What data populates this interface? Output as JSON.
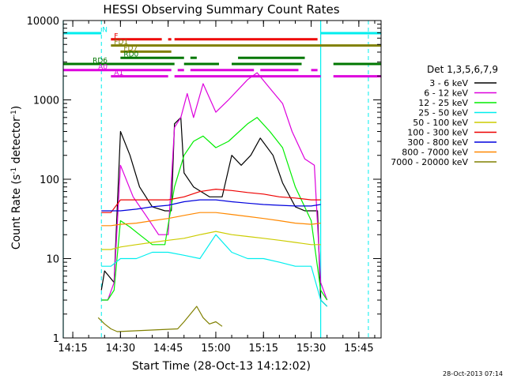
{
  "chart_data": {
    "type": "line",
    "title": "HESSI Observing Summary Count Rates",
    "xlabel": "Start Time (28-Oct-13 14:12:02)",
    "ylabel": "Count Rate (s⁻¹ detector⁻¹)",
    "ylabel_main": "Count Rate (s",
    "ylabel_mid": " detector",
    "ylabel_end": ")",
    "ylabel_sup": "-1",
    "y_scale": "log",
    "ylim": [
      1,
      10000
    ],
    "xlim": [
      "14:12",
      "15:52"
    ],
    "x_ticks": [
      "14:15",
      "14:30",
      "14:45",
      "15:00",
      "15:15",
      "15:30",
      "15:45"
    ],
    "y_ticks": [
      "1",
      "10",
      "100",
      "1000",
      "10000"
    ],
    "footer_timestamp": "28-Oct-2013 07:14",
    "legend": {
      "title": "Det 1,3,5,6,7,9",
      "placement": "right"
    },
    "series": [
      {
        "name": "3 - 6 keV",
        "color": "#000000",
        "points": [
          [
            "14:24",
            4
          ],
          [
            "14:25",
            7
          ],
          [
            "14:28",
            5
          ],
          [
            "14:30",
            400
          ],
          [
            "14:33",
            200
          ],
          [
            "14:36",
            80
          ],
          [
            "14:40",
            45
          ],
          [
            "14:44",
            40
          ],
          [
            "14:46",
            40
          ],
          [
            "14:47",
            500
          ],
          [
            "14:49",
            600
          ],
          [
            "14:50",
            120
          ],
          [
            "14:53",
            80
          ],
          [
            "14:58",
            60
          ],
          [
            "15:02",
            60
          ],
          [
            "15:05",
            200
          ],
          [
            "15:08",
            150
          ],
          [
            "15:11",
            200
          ],
          [
            "15:14",
            330
          ],
          [
            "15:18",
            200
          ],
          [
            "15:21",
            90
          ],
          [
            "15:25",
            45
          ],
          [
            "15:28",
            40
          ],
          [
            "15:32",
            40
          ],
          [
            "15:33",
            3
          ],
          [
            "15:35",
            2.5
          ]
        ]
      },
      {
        "name": "6 - 12 keV",
        "color": "#dd00dd",
        "points": [
          [
            "14:24",
            3
          ],
          [
            "14:26",
            3
          ],
          [
            "14:28",
            5
          ],
          [
            "14:30",
            150
          ],
          [
            "14:34",
            60
          ],
          [
            "14:38",
            35
          ],
          [
            "14:42",
            20
          ],
          [
            "14:45",
            20
          ],
          [
            "14:47",
            450
          ],
          [
            "14:49",
            600
          ],
          [
            "14:51",
            1200
          ],
          [
            "14:53",
            600
          ],
          [
            "14:56",
            1600
          ],
          [
            "15:00",
            700
          ],
          [
            "15:04",
            1000
          ],
          [
            "15:10",
            1800
          ],
          [
            "15:13",
            2200
          ],
          [
            "15:17",
            1400
          ],
          [
            "15:21",
            900
          ],
          [
            "15:24",
            400
          ],
          [
            "15:28",
            180
          ],
          [
            "15:31",
            150
          ],
          [
            "15:33",
            5
          ],
          [
            "15:35",
            3
          ]
        ]
      },
      {
        "name": "12 - 25 keV",
        "color": "#00ee00",
        "points": [
          [
            "14:24",
            3
          ],
          [
            "14:26",
            3
          ],
          [
            "14:28",
            4
          ],
          [
            "14:30",
            30
          ],
          [
            "14:33",
            25
          ],
          [
            "14:36",
            20
          ],
          [
            "14:40",
            15
          ],
          [
            "14:44",
            15
          ],
          [
            "14:47",
            80
          ],
          [
            "14:50",
            200
          ],
          [
            "14:53",
            300
          ],
          [
            "14:56",
            350
          ],
          [
            "15:00",
            250
          ],
          [
            "15:04",
            300
          ],
          [
            "15:10",
            500
          ],
          [
            "15:13",
            600
          ],
          [
            "15:17",
            400
          ],
          [
            "15:21",
            250
          ],
          [
            "15:25",
            80
          ],
          [
            "15:30",
            30
          ],
          [
            "15:33",
            4
          ],
          [
            "15:35",
            3
          ]
        ]
      },
      {
        "name": "25 - 50 keV",
        "color": "#00eeee",
        "points": [
          [
            "14:24",
            8
          ],
          [
            "14:27",
            8
          ],
          [
            "14:30",
            10
          ],
          [
            "14:35",
            10
          ],
          [
            "14:40",
            12
          ],
          [
            "14:45",
            12
          ],
          [
            "14:50",
            11
          ],
          [
            "14:55",
            10
          ],
          [
            "15:00",
            20
          ],
          [
            "15:05",
            12
          ],
          [
            "15:10",
            10
          ],
          [
            "15:15",
            10
          ],
          [
            "15:20",
            9
          ],
          [
            "15:25",
            8
          ],
          [
            "15:30",
            8
          ],
          [
            "15:33",
            3
          ],
          [
            "15:35",
            2.5
          ]
        ]
      },
      {
        "name": "50 - 100 keV",
        "color": "#cccc00",
        "points": [
          [
            "14:24",
            13
          ],
          [
            "14:27",
            13
          ],
          [
            "14:30",
            14
          ],
          [
            "14:35",
            15
          ],
          [
            "14:40",
            16
          ],
          [
            "14:45",
            17
          ],
          [
            "14:50",
            18
          ],
          [
            "14:55",
            20
          ],
          [
            "15:00",
            22
          ],
          [
            "15:05",
            20
          ],
          [
            "15:10",
            19
          ],
          [
            "15:15",
            18
          ],
          [
            "15:20",
            17
          ],
          [
            "15:25",
            16
          ],
          [
            "15:30",
            15
          ],
          [
            "15:33",
            15
          ]
        ]
      },
      {
        "name": "100 - 300 keV",
        "color": "#ee0000",
        "points": [
          [
            "14:24",
            38
          ],
          [
            "14:27",
            38
          ],
          [
            "14:30",
            55
          ],
          [
            "14:35",
            55
          ],
          [
            "14:40",
            55
          ],
          [
            "14:45",
            55
          ],
          [
            "14:50",
            60
          ],
          [
            "14:55",
            70
          ],
          [
            "15:00",
            75
          ],
          [
            "15:05",
            72
          ],
          [
            "15:10",
            68
          ],
          [
            "15:15",
            65
          ],
          [
            "15:20",
            60
          ],
          [
            "15:25",
            58
          ],
          [
            "15:30",
            55
          ],
          [
            "15:33",
            55
          ]
        ]
      },
      {
        "name": "300 - 800 keV",
        "color": "#0000dd",
        "points": [
          [
            "14:24",
            40
          ],
          [
            "14:27",
            40
          ],
          [
            "14:30",
            40
          ],
          [
            "14:35",
            42
          ],
          [
            "14:40",
            45
          ],
          [
            "14:45",
            47
          ],
          [
            "14:50",
            52
          ],
          [
            "14:55",
            55
          ],
          [
            "15:00",
            55
          ],
          [
            "15:05",
            52
          ],
          [
            "15:10",
            50
          ],
          [
            "15:15",
            48
          ],
          [
            "15:20",
            47
          ],
          [
            "15:25",
            46
          ],
          [
            "15:30",
            46
          ],
          [
            "15:33",
            48
          ]
        ]
      },
      {
        "name": "800 - 7000 keV",
        "color": "#ff8800",
        "points": [
          [
            "14:24",
            26
          ],
          [
            "14:27",
            26
          ],
          [
            "14:30",
            27
          ],
          [
            "14:35",
            28
          ],
          [
            "14:40",
            30
          ],
          [
            "14:45",
            32
          ],
          [
            "14:50",
            35
          ],
          [
            "14:55",
            38
          ],
          [
            "15:00",
            38
          ],
          [
            "15:05",
            36
          ],
          [
            "15:10",
            34
          ],
          [
            "15:15",
            32
          ],
          [
            "15:20",
            30
          ],
          [
            "15:25",
            28
          ],
          [
            "15:30",
            27
          ],
          [
            "15:33",
            28
          ]
        ]
      },
      {
        "name": "7000 - 20000 keV",
        "color": "#808000",
        "points": [
          [
            "14:23",
            1.8
          ],
          [
            "14:25",
            1.5
          ],
          [
            "14:27",
            1.3
          ],
          [
            "14:29",
            1.2
          ],
          [
            "14:48",
            1.3
          ],
          [
            "14:50",
            1.6
          ],
          [
            "14:52",
            2.0
          ],
          [
            "14:54",
            2.5
          ],
          [
            "14:56",
            1.8
          ],
          [
            "14:58",
            1.5
          ],
          [
            "15:00",
            1.6
          ],
          [
            "15:02",
            1.4
          ]
        ]
      }
    ],
    "state_bars": [
      {
        "label": "N",
        "color": "#00eeee",
        "segments": [
          [
            "14:12",
            "14:24"
          ],
          [
            "15:33",
            "15:52"
          ]
        ]
      },
      {
        "label": "F",
        "color": "#ee0000",
        "segments": [
          [
            "14:27",
            "14:43"
          ],
          [
            "14:45",
            "14:46"
          ],
          [
            "14:47",
            "15:32"
          ]
        ]
      },
      {
        "label": "FD1",
        "color": "#808000",
        "segments": [
          [
            "14:27",
            "15:52"
          ]
        ]
      },
      {
        "label": "FD7",
        "color": "#808000",
        "segments": [
          [
            "14:30",
            "14:46"
          ]
        ]
      },
      {
        "label": "RD0",
        "color": "#007700",
        "segments": [
          [
            "14:30",
            "14:50"
          ],
          [
            "14:52",
            "14:54"
          ],
          [
            "15:07",
            "15:28"
          ]
        ]
      },
      {
        "label": "RD6",
        "color": "#007700",
        "segments": [
          [
            "14:12",
            "14:47"
          ],
          [
            "14:50",
            "15:01"
          ],
          [
            "15:05",
            "15:27"
          ],
          [
            "15:37",
            "15:52"
          ]
        ]
      },
      {
        "label": "A0",
        "color": "#dd00dd",
        "segments": [
          [
            "14:12",
            "14:46"
          ],
          [
            "14:48",
            "14:50"
          ],
          [
            "14:52",
            "15:12"
          ],
          [
            "15:14",
            "15:26"
          ],
          [
            "15:30",
            "15:32"
          ]
        ]
      },
      {
        "label": "A1",
        "color": "#dd00dd",
        "segments": [
          [
            "14:27",
            "14:45"
          ],
          [
            "14:47",
            "15:33"
          ],
          [
            "15:37",
            "15:52"
          ]
        ]
      }
    ],
    "markers": {
      "dashed_vertical_times": [
        "14:24",
        "15:48"
      ],
      "solid_vertical_times": [
        "14:12",
        "15:33"
      ],
      "color": "#00eeee"
    }
  }
}
